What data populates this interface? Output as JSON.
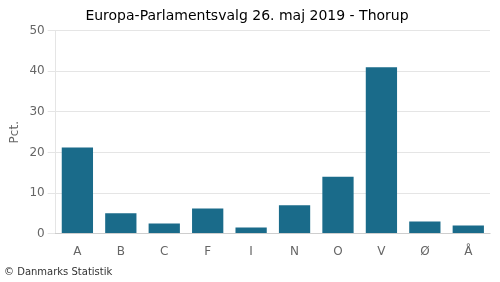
{
  "chart_data": {
    "type": "bar",
    "title": "Europa-Parlamentsvalg 26. maj 2019 - Thorup",
    "categories": [
      "A",
      "B",
      "C",
      "F",
      "I",
      "N",
      "O",
      "V",
      "Ø",
      "Å"
    ],
    "values": [
      21.2,
      5.0,
      2.5,
      6.2,
      1.5,
      7.0,
      14.0,
      41.0,
      3.0,
      2.0
    ],
    "color": "#1a6b8a",
    "ylabel": "Pct.",
    "footer": "© Danmarks Statistik",
    "ylim": [
      0,
      50
    ],
    "yticks": [
      0,
      10,
      20,
      30,
      40,
      50
    ],
    "grid": true
  }
}
